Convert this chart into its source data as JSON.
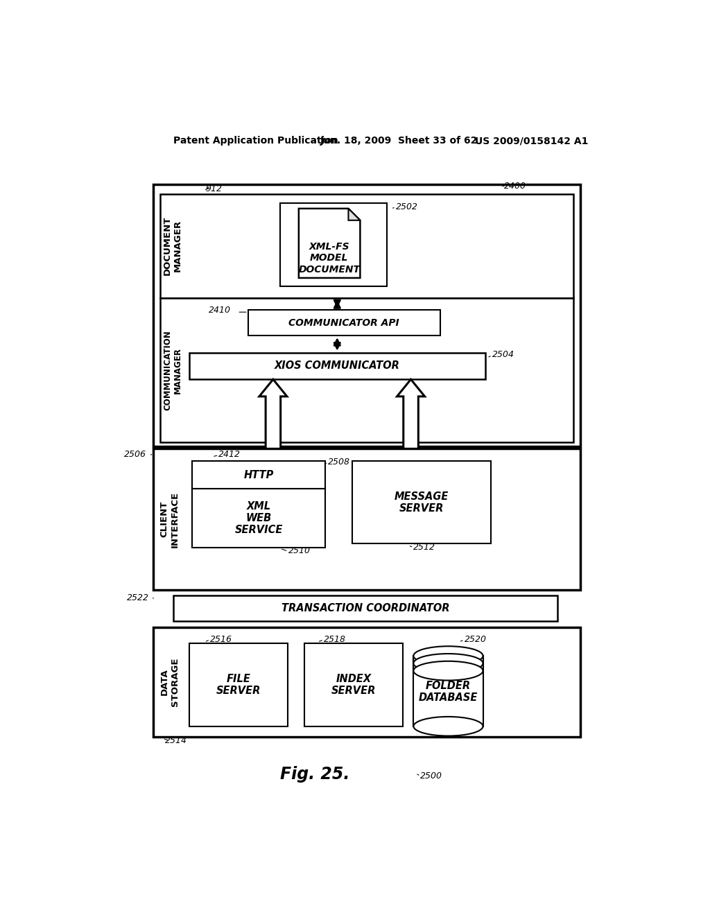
{
  "bg_color": "#ffffff",
  "header_text_left": "Patent Application Publication",
  "header_text_mid": "Jun. 18, 2009  Sheet 33 of 62",
  "header_text_right": "US 2009/0158142 A1",
  "fig_label": "Fig. 25.",
  "label_2500": "2500",
  "label_2514": "2514",
  "label_912": "912",
  "label_2400": "2400",
  "label_2502": "2502",
  "label_2410": "2410",
  "label_2504": "2504",
  "label_2506": "2506",
  "label_2412": "2412",
  "label_2508": "2508",
  "label_2510": "2510",
  "label_2512": "2512",
  "label_2522": "2522",
  "label_2516": "2516",
  "label_2518": "2518",
  "label_2520": "2520"
}
